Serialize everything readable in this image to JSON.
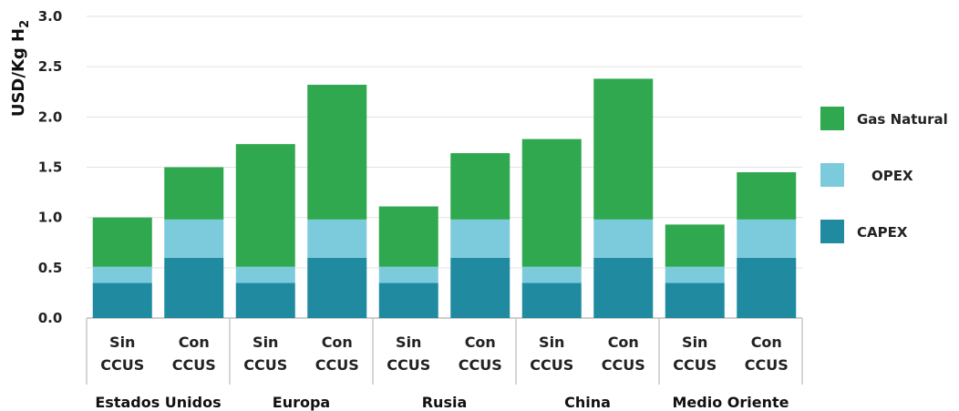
{
  "chart_data": {
    "type": "bar",
    "stacked": true,
    "ylabel_main": "USD/Kg H",
    "ylabel_sub": "2",
    "ylim": [
      0,
      3.0
    ],
    "yticks": [
      "0.0",
      "0.5",
      "1.0",
      "1.5",
      "2.0",
      "2.5",
      "3.0"
    ],
    "grid": true,
    "legend_position": "right",
    "groups": [
      "Estados Unidos",
      "Europa",
      "Rusia",
      "China",
      "Medio Oriente"
    ],
    "categories": [
      {
        "line1": "Sin",
        "line2": "CCUS"
      },
      {
        "line1": "Con",
        "line2": "CCUS"
      },
      {
        "line1": "Sin",
        "line2": "CCUS"
      },
      {
        "line1": "Con",
        "line2": "CCUS"
      },
      {
        "line1": "Sin",
        "line2": "CCUS"
      },
      {
        "line1": "Con",
        "line2": "CCUS"
      },
      {
        "line1": "Sin",
        "line2": "CCUS"
      },
      {
        "line1": "Con",
        "line2": "CCUS"
      },
      {
        "line1": "Sin",
        "line2": "CCUS"
      },
      {
        "line1": "Con",
        "line2": "CCUS"
      }
    ],
    "series": [
      {
        "name": "CAPEX",
        "color": "#1f8aa0",
        "values": [
          0.35,
          0.6,
          0.35,
          0.6,
          0.35,
          0.6,
          0.35,
          0.6,
          0.35,
          0.6
        ]
      },
      {
        "name": "OPEX",
        "color": "#7ccbdc",
        "values": [
          0.16,
          0.38,
          0.16,
          0.38,
          0.16,
          0.38,
          0.16,
          0.38,
          0.16,
          0.38
        ]
      },
      {
        "name": "Gas Natural",
        "color": "#2fa84f",
        "values": [
          0.49,
          0.52,
          1.22,
          1.34,
          0.6,
          0.66,
          1.27,
          1.4,
          0.42,
          0.47
        ]
      }
    ],
    "legend_order": [
      "Gas Natural",
      "OPEX",
      "CAPEX"
    ]
  }
}
